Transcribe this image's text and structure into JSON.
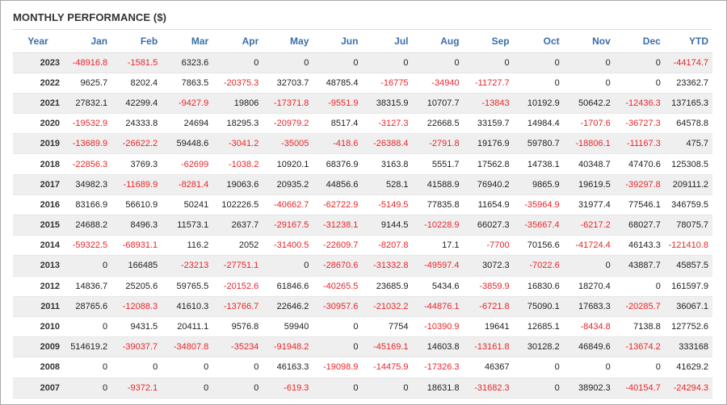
{
  "title": "MONTHLY PERFORMANCE ($)",
  "colors": {
    "header_text": "#3a6fa8",
    "negative": "#e8262b",
    "stripe": "#efefef"
  },
  "columns": [
    "Year",
    "Jan",
    "Feb",
    "Mar",
    "Apr",
    "May",
    "Jun",
    "Jul",
    "Aug",
    "Sep",
    "Oct",
    "Nov",
    "Dec",
    "YTD"
  ],
  "rows": [
    [
      "2023",
      "-48916.8",
      "-1581.5",
      "6323.6",
      "0",
      "0",
      "0",
      "0",
      "0",
      "0",
      "0",
      "0",
      "0",
      "-44174.7"
    ],
    [
      "2022",
      "9625.7",
      "8202.4",
      "7863.5",
      "-20375.3",
      "32703.7",
      "48785.4",
      "-16775",
      "-34940",
      "-11727.7",
      "0",
      "0",
      "0",
      "23362.7"
    ],
    [
      "2021",
      "27832.1",
      "42299.4",
      "-9427.9",
      "19806",
      "-17371.8",
      "-9551.9",
      "38315.9",
      "10707.7",
      "-13843",
      "10192.9",
      "50642.2",
      "-12436.3",
      "137165.3"
    ],
    [
      "2020",
      "-19532.9",
      "24333.8",
      "24694",
      "18295.3",
      "-20979.2",
      "8517.4",
      "-3127.3",
      "22668.5",
      "33159.7",
      "14984.4",
      "-1707.6",
      "-36727.3",
      "64578.8"
    ],
    [
      "2019",
      "-13689.9",
      "-26622.2",
      "59448.6",
      "-3041.2",
      "-35005",
      "-418.6",
      "-26388.4",
      "-2791.8",
      "19176.9",
      "59780.7",
      "-18806.1",
      "-11167.3",
      "475.7"
    ],
    [
      "2018",
      "-22856.3",
      "3769.3",
      "-62699",
      "-1038.2",
      "10920.1",
      "68376.9",
      "3163.8",
      "5551.7",
      "17562.8",
      "14738.1",
      "40348.7",
      "47470.6",
      "125308.5"
    ],
    [
      "2017",
      "34982.3",
      "-11689.9",
      "-8281.4",
      "19063.6",
      "20935.2",
      "44856.6",
      "528.1",
      "41588.9",
      "76940.2",
      "9865.9",
      "19619.5",
      "-39297.8",
      "209111.2"
    ],
    [
      "2016",
      "83166.9",
      "56610.9",
      "50241",
      "102226.5",
      "-40662.7",
      "-62722.9",
      "-5149.5",
      "77835.8",
      "11654.9",
      "-35964.9",
      "31977.4",
      "77546.1",
      "346759.5"
    ],
    [
      "2015",
      "24688.2",
      "8496.3",
      "11573.1",
      "2637.7",
      "-29167.5",
      "-31238.1",
      "9144.5",
      "-10228.9",
      "66027.3",
      "-35667.4",
      "-6217.2",
      "68027.7",
      "78075.7"
    ],
    [
      "2014",
      "-59322.5",
      "-68931.1",
      "116.2",
      "2052",
      "-31400.5",
      "-22609.7",
      "-8207.8",
      "17.1",
      "-7700",
      "70156.6",
      "-41724.4",
      "46143.3",
      "-121410.8"
    ],
    [
      "2013",
      "0",
      "166485",
      "-23213",
      "-27751.1",
      "0",
      "-28670.6",
      "-31332.8",
      "-49597.4",
      "3072.3",
      "-7022.6",
      "0",
      "43887.7",
      "45857.5"
    ],
    [
      "2012",
      "14836.7",
      "25205.6",
      "59765.5",
      "-20152.6",
      "61846.6",
      "-40265.5",
      "23685.9",
      "5434.6",
      "-3859.9",
      "16830.6",
      "18270.4",
      "0",
      "161597.9"
    ],
    [
      "2011",
      "28765.6",
      "-12088.3",
      "41610.3",
      "-13766.7",
      "22646.2",
      "-30957.6",
      "-21032.2",
      "-44876.1",
      "-6721.8",
      "75090.1",
      "17683.3",
      "-20285.7",
      "36067.1"
    ],
    [
      "2010",
      "0",
      "9431.5",
      "20411.1",
      "9576.8",
      "59940",
      "0",
      "7754",
      "-10390.9",
      "19641",
      "12685.1",
      "-8434.8",
      "7138.8",
      "127752.6"
    ],
    [
      "2009",
      "514619.2",
      "-39037.7",
      "-34807.8",
      "-35234",
      "-91948.2",
      "0",
      "-45169.1",
      "14603.8",
      "-13161.8",
      "30128.2",
      "46849.6",
      "-13674.2",
      "333168"
    ],
    [
      "2008",
      "0",
      "0",
      "0",
      "0",
      "46163.3",
      "-19098.9",
      "-14475.9",
      "-17326.3",
      "46367",
      "0",
      "0",
      "0",
      "41629.2"
    ],
    [
      "2007",
      "0",
      "-9372.1",
      "0",
      "0",
      "-619.3",
      "0",
      "0",
      "18631.8",
      "-31682.3",
      "0",
      "38902.3",
      "-40154.7",
      "-24294.3"
    ]
  ]
}
